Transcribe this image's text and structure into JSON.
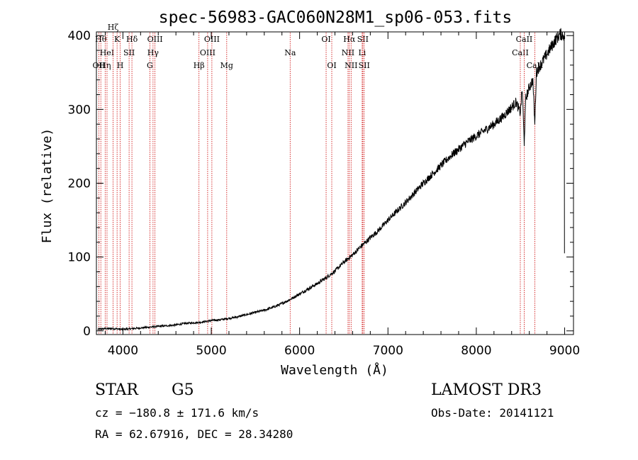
{
  "chart_data": {
    "type": "line",
    "title": "spec-56983-GAC060N28M1_sp06-053.fits",
    "xlabel": "Wavelength (Å)",
    "ylabel": "Flux (relative)",
    "xlim": [
      3700,
      9100
    ],
    "ylim": [
      -5,
      405
    ],
    "xticks": [
      4000,
      5000,
      6000,
      7000,
      8000,
      9000
    ],
    "xtick_labels": [
      "4000",
      "5000",
      "6000",
      "7000",
      "8000",
      "9000"
    ],
    "yticks": [
      0,
      100,
      200,
      300,
      400
    ],
    "ytick_labels": [
      "0",
      "100",
      "200",
      "300",
      "400"
    ],
    "grid": false,
    "series": [
      {
        "name": "flux",
        "x": [
          3700,
          3800,
          3900,
          4000,
          4100,
          4200,
          4300,
          4400,
          4500,
          4600,
          4700,
          4800,
          4900,
          5000,
          5100,
          5200,
          5300,
          5400,
          5500,
          5600,
          5700,
          5800,
          5900,
          6000,
          6100,
          6200,
          6300,
          6400,
          6500,
          6600,
          6700,
          6800,
          6900,
          7000,
          7100,
          7200,
          7300,
          7400,
          7500,
          7600,
          7700,
          7800,
          7900,
          8000,
          8100,
          8200,
          8300,
          8400,
          8450,
          8498,
          8520,
          8542,
          8560,
          8600,
          8640,
          8662,
          8680,
          8700,
          8800,
          8900,
          8950,
          9000
        ],
        "y": [
          2,
          3,
          3,
          2,
          3,
          4,
          5,
          6,
          7,
          8,
          10,
          11,
          12,
          14,
          15,
          17,
          19,
          22,
          25,
          28,
          32,
          37,
          43,
          50,
          57,
          64,
          72,
          81,
          93,
          103,
          115,
          126,
          137,
          150,
          162,
          174,
          187,
          200,
          212,
          224,
          236,
          246,
          256,
          264,
          272,
          280,
          290,
          303,
          310,
          295,
          328,
          255,
          315,
          330,
          340,
          280,
          350,
          355,
          375,
          395,
          402,
          400
        ]
      }
    ],
    "lines": [
      {
        "wl": 3727,
        "label": "OII",
        "row": 3
      },
      {
        "wl": 3750,
        "label": "Hθ",
        "row": 1
      },
      {
        "wl": 3799,
        "label": "Hη",
        "row": 3
      },
      {
        "wl": 3820,
        "label": "HeI",
        "row": 2
      },
      {
        "wl": 3889,
        "label": "Hζ",
        "row": 0
      },
      {
        "wl": 3934,
        "label": "K",
        "row": 1
      },
      {
        "wl": 3969,
        "label": "H",
        "row": 3
      },
      {
        "wl": 4070,
        "label": "SII",
        "row": 2
      },
      {
        "wl": 4102,
        "label": "Hδ",
        "row": 1
      },
      {
        "wl": 4305,
        "label": "G",
        "row": 3
      },
      {
        "wl": 4341,
        "label": "Hγ",
        "row": 2
      },
      {
        "wl": 4363,
        "label": "OIII",
        "row": 1
      },
      {
        "wl": 4861,
        "label": "Hβ",
        "row": 3
      },
      {
        "wl": 4959,
        "label": "OIII",
        "row": 2
      },
      {
        "wl": 5007,
        "label": "OIII",
        "row": 1
      },
      {
        "wl": 5175,
        "label": "Mg",
        "row": 3
      },
      {
        "wl": 5893,
        "label": "Na",
        "row": 2
      },
      {
        "wl": 6300,
        "label": "OI",
        "row": 1
      },
      {
        "wl": 6364,
        "label": "OI",
        "row": 3
      },
      {
        "wl": 6548,
        "label": "NII",
        "row": 2
      },
      {
        "wl": 6563,
        "label": "Hα",
        "row": 1
      },
      {
        "wl": 6583,
        "label": "NII",
        "row": 3
      },
      {
        "wl": 6708,
        "label": "Li",
        "row": 2
      },
      {
        "wl": 6716,
        "label": "SII",
        "row": 1
      },
      {
        "wl": 6731,
        "label": "SII",
        "row": 3
      },
      {
        "wl": 8498,
        "label": "CaII",
        "row": 2
      },
      {
        "wl": 8542,
        "label": "CaII",
        "row": 1
      },
      {
        "wl": 8662,
        "label": "CaII",
        "row": 3
      }
    ]
  },
  "info": {
    "class": "STAR",
    "subclass": "G5",
    "survey": "LAMOST DR3",
    "cz": "cz = −180.8 ± 171.6 km/s",
    "obs_date": "Obs-Date: 20141121",
    "coords": "RA =  62.67916, DEC =  28.34280"
  },
  "colors": {
    "spectrum": "#000000",
    "line_marker": "#cc0000",
    "axes": "#000000",
    "background": "#ffffff"
  }
}
